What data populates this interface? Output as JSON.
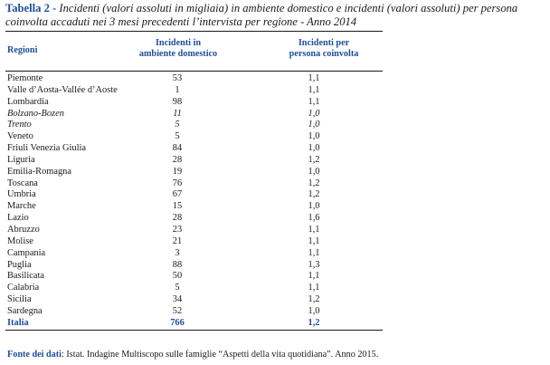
{
  "caption": {
    "label": "Tabella 2",
    "separator": " - ",
    "line1": "Incidenti (valori assoluti in migliaia) in ambiente domestico e incidenti (valori assoluti) per persona",
    "line2": "coinvolta accaduti nei 3 mesi precedenti l’intervista per regione - Anno 2014"
  },
  "table": {
    "headers": {
      "region": "Regioni",
      "col1_line1": "Incidenti in",
      "col1_line2": "ambiente domestico",
      "col2_line1": "Incidenti per",
      "col2_line2": "persona coinvolta"
    },
    "rows": [
      {
        "region": "Piemonte",
        "incidents": "53",
        "per_person": "1,1",
        "style": "normal"
      },
      {
        "region": "Valle d’Aosta-Vallée d’Aoste",
        "incidents": "1",
        "per_person": "1,1",
        "style": "normal"
      },
      {
        "region": "Lombardia",
        "incidents": "98",
        "per_person": "1,1",
        "style": "normal"
      },
      {
        "region": "Bolzano-Bozen",
        "incidents": "11",
        "per_person": "1,0",
        "style": "italic"
      },
      {
        "region": "Trento",
        "incidents": "5",
        "per_person": "1,0",
        "style": "italic"
      },
      {
        "region": "Veneto",
        "incidents": "5",
        "per_person": "1,0",
        "style": "normal"
      },
      {
        "region": "Friuli Venezia Giulia",
        "incidents": "84",
        "per_person": "1,0",
        "style": "normal"
      },
      {
        "region": "Liguria",
        "incidents": "28",
        "per_person": "1,2",
        "style": "normal"
      },
      {
        "region": "Emilia-Romagna",
        "incidents": "19",
        "per_person": "1,0",
        "style": "normal"
      },
      {
        "region": "Toscana",
        "incidents": "76",
        "per_person": "1,2",
        "style": "normal"
      },
      {
        "region": "Umbria",
        "incidents": "67",
        "per_person": "1,2",
        "style": "normal"
      },
      {
        "region": "Marche",
        "incidents": "15",
        "per_person": "1,0",
        "style": "normal"
      },
      {
        "region": "Lazio",
        "incidents": "28",
        "per_person": "1,6",
        "style": "normal"
      },
      {
        "region": "Abruzzo",
        "incidents": "23",
        "per_person": "1,1",
        "style": "normal"
      },
      {
        "region": "Molise",
        "incidents": "21",
        "per_person": "1,1",
        "style": "normal"
      },
      {
        "region": "Campania",
        "incidents": "3",
        "per_person": "1,1",
        "style": "normal"
      },
      {
        "region": "Puglia",
        "incidents": "88",
        "per_person": "1,3",
        "style": "normal"
      },
      {
        "region": "Basilicata",
        "incidents": "50",
        "per_person": "1,1",
        "style": "normal"
      },
      {
        "region": "Calabria",
        "incidents": "5",
        "per_person": "1,1",
        "style": "normal"
      },
      {
        "region": "Sicilia",
        "incidents": "34",
        "per_person": "1,2",
        "style": "normal"
      },
      {
        "region": "Sardegna",
        "incidents": "52",
        "per_person": "1,0",
        "style": "normal"
      },
      {
        "region": "Italia",
        "incidents": "766",
        "per_person": "1,2",
        "style": "total"
      }
    ]
  },
  "source": {
    "label": "Fonte dei dati",
    "text": ": Istat. Indagine Multiscopo sulle famiglie “Aspetti della vita quotidiana”. Anno 2015."
  },
  "colors": {
    "accent": "#1f4e96",
    "text": "#1a1a1a"
  }
}
